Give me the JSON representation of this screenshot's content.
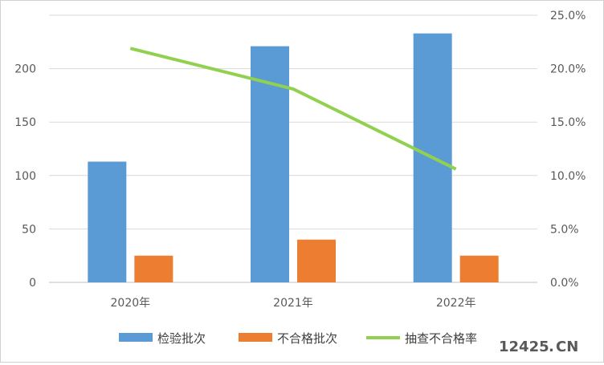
{
  "chart_data": {
    "type": "bar",
    "categories": [
      "2020年",
      "2021年",
      "2022年"
    ],
    "series": [
      {
        "name": "检验批次",
        "type": "bar",
        "axis": "left",
        "values": [
          113,
          221,
          233
        ],
        "color": "#5B9BD5"
      },
      {
        "name": "不合格批次",
        "type": "bar",
        "axis": "left",
        "values": [
          25,
          40,
          25
        ],
        "color": "#ED7D31"
      },
      {
        "name": "抽查不合格率",
        "type": "line",
        "axis": "right",
        "values": [
          0.219,
          0.181,
          0.106
        ],
        "color": "#92D050"
      }
    ],
    "y_left": {
      "ylim": [
        0,
        250
      ],
      "ticks": [
        0,
        50,
        100,
        150,
        200
      ]
    },
    "y_right": {
      "ylim": [
        0,
        0.25
      ],
      "ticks": [
        "0.0%",
        "5.0%",
        "10.0%",
        "15.0%",
        "20.0%",
        "25.0%"
      ]
    },
    "gridlines": true,
    "legend_position": "bottom",
    "title": "",
    "xlabel": "",
    "ylabel": ""
  },
  "watermark": {
    "number": "12425",
    "dot": ".",
    "domain": "CN"
  }
}
